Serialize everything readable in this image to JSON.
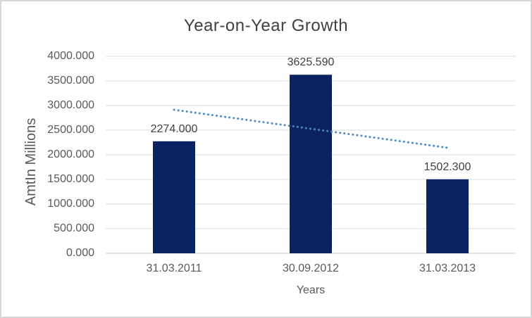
{
  "chart_data": {
    "type": "bar",
    "title": "Year-on-Year Growth",
    "categories": [
      "31.03.2011",
      "30.09.2012",
      "31.03.2013"
    ],
    "values": [
      2274.0,
      3625.59,
      1502.3
    ],
    "value_labels": [
      "2274.000",
      "3625.590",
      "1502.300"
    ],
    "xlabel": "Years",
    "ylabel": "AmtIn Millions",
    "ylim": [
      0,
      4000
    ],
    "ytick_step": 500,
    "ytick_labels": [
      "0.000",
      "500.000",
      "1000.000",
      "1500.000",
      "2000.000",
      "2500.000",
      "3000.000",
      "3500.000",
      "4000.000"
    ],
    "grid": true,
    "legend": "none",
    "trendline": {
      "type": "linear",
      "style": "dotted",
      "start_value": 2914,
      "end_value": 2143
    },
    "colors": {
      "bar": "#0B2361",
      "trendline": "#4F86C6",
      "gridline": "#D9D9D9",
      "axis_line": "#C9C9C9",
      "title_text": "#404040",
      "tick_text": "#595959",
      "data_label_text": "#404040",
      "border": "#D6D6D6",
      "background": "#FFFFFF"
    }
  }
}
